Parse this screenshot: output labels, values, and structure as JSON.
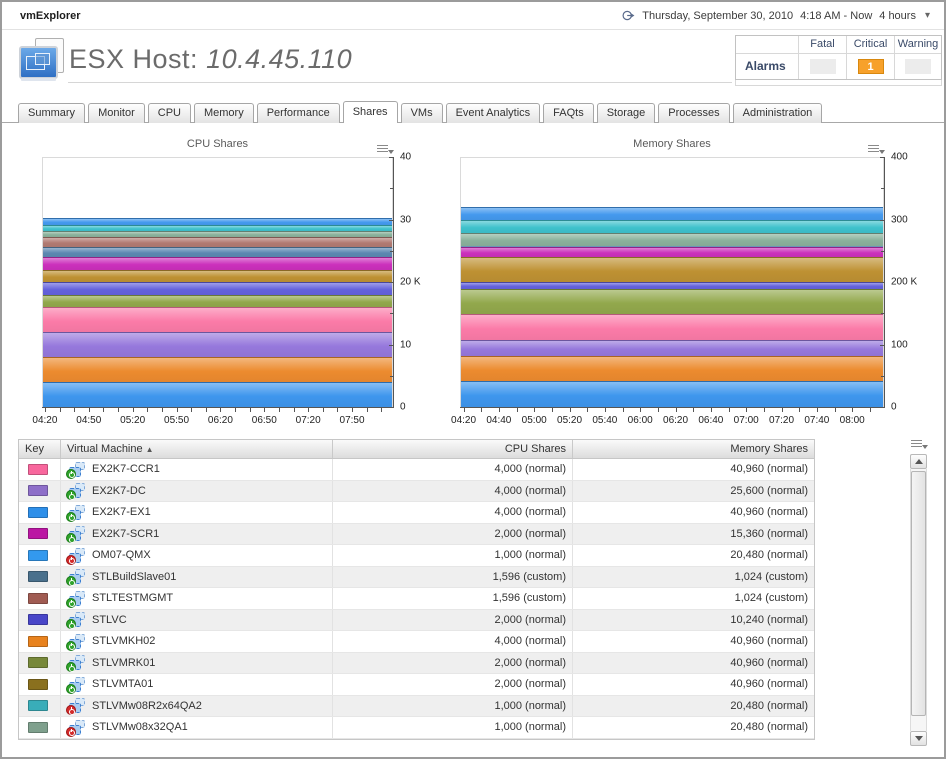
{
  "topbar": {
    "app_title": "vmExplorer",
    "date_label": "Thursday, September 30, 2010",
    "time_label": "4:18 AM - Now",
    "duration_label": "4 hours"
  },
  "header": {
    "title_prefix": "ESX Host:",
    "title_value": "10.4.45.110"
  },
  "alarms": {
    "row_label": "Alarms",
    "columns": [
      "Fatal",
      "Critical",
      "Warning"
    ],
    "fatal_count": "",
    "critical_count": "1",
    "warning_count": "",
    "critical_color": "#F7A12B"
  },
  "tabs": {
    "active": "Shares",
    "items": [
      "Summary",
      "Monitor",
      "CPU",
      "Memory",
      "Performance",
      "Shares",
      "VMs",
      "Event Analytics",
      "FAQts",
      "Storage",
      "Processes",
      "Administration"
    ]
  },
  "chart_data": [
    {
      "type": "area",
      "stacked": true,
      "title": "CPU Shares",
      "y_unit": "K",
      "ylim": [
        0,
        40000
      ],
      "y_minor_step": 5000,
      "y_ticks": [
        {
          "value": 40000,
          "label": "40"
        },
        {
          "value": 30000,
          "label": "30"
        },
        {
          "value": 20000,
          "label": "20 K"
        },
        {
          "value": 10000,
          "label": "10"
        },
        {
          "value": 0,
          "label": "0"
        }
      ],
      "x_start": "04:18",
      "x_end": "08:18",
      "x_minor_step_min": 10,
      "x_labels": [
        "04:20",
        "04:50",
        "05:20",
        "05:50",
        "06:20",
        "06:50",
        "07:20",
        "07:50"
      ],
      "note": "values constant across the 4-hour window; stacked bottom to top",
      "series_bottom_to_top": [
        {
          "name": "EX2K7-EX1",
          "value": 4000,
          "color": "#3E96ED"
        },
        {
          "name": "STLVMKH02",
          "value": 4000,
          "color": "#EC8B2F"
        },
        {
          "name": "EX2K7-DC",
          "value": 4000,
          "color": "#9678DC"
        },
        {
          "name": "EX2K7-CCR1",
          "value": 4000,
          "color": "#FB7BA8"
        },
        {
          "name": "STLVMRK01",
          "value": 2000,
          "color": "#92A84C"
        },
        {
          "name": "STLVC",
          "value": 2000,
          "color": "#6462DC"
        },
        {
          "name": "STLVMTA01",
          "value": 2000,
          "color": "#BE9133"
        },
        {
          "name": "EX2K7-SCR1",
          "value": 2000,
          "color": "#CB30BC"
        },
        {
          "name": "STLBuildSlave01",
          "value": 1596,
          "color": "#5C88B1"
        },
        {
          "name": "STLTESTMGMT",
          "value": 1596,
          "color": "#B17A72"
        },
        {
          "name": "STLVMw08x32QA1",
          "value": 1000,
          "color": "#8AB19B"
        },
        {
          "name": "STLVMw08R2x64QA2",
          "value": 1000,
          "color": "#3FC1CC"
        },
        {
          "name": "OM07-QMX",
          "value": 1000,
          "color": "#4499EE"
        }
      ]
    },
    {
      "type": "area",
      "stacked": true,
      "title": "Memory Shares",
      "y_unit": "K",
      "ylim": [
        0,
        400000
      ],
      "y_minor_step": 50000,
      "y_ticks": [
        {
          "value": 400000,
          "label": "400"
        },
        {
          "value": 300000,
          "label": "300"
        },
        {
          "value": 200000,
          "label": "200 K"
        },
        {
          "value": 100000,
          "label": "100"
        },
        {
          "value": 0,
          "label": "0"
        }
      ],
      "x_start": "04:18",
      "x_end": "08:18",
      "x_minor_step_min": 10,
      "x_labels": [
        "04:20",
        "04:40",
        "05:00",
        "05:20",
        "05:40",
        "06:00",
        "06:20",
        "06:40",
        "07:00",
        "07:20",
        "07:40",
        "08:00"
      ],
      "note": "values constant across the 4-hour window; stacked bottom to top",
      "series_bottom_to_top": [
        {
          "name": "EX2K7-EX1",
          "value": 40960,
          "color": "#3E96ED"
        },
        {
          "name": "STLVMKH02",
          "value": 40960,
          "color": "#EC8B2F"
        },
        {
          "name": "EX2K7-DC",
          "value": 25600,
          "color": "#9678DC"
        },
        {
          "name": "EX2K7-CCR1",
          "value": 40960,
          "color": "#FB7BA8"
        },
        {
          "name": "STLVMRK01",
          "value": 40960,
          "color": "#92A84C"
        },
        {
          "name": "STLVC",
          "value": 10240,
          "color": "#6462DC"
        },
        {
          "name": "STLVMTA01",
          "value": 40960,
          "color": "#BE9133"
        },
        {
          "name": "EX2K7-SCR1",
          "value": 15360,
          "color": "#CB30BC"
        },
        {
          "name": "STLBuildSlave01",
          "value": 1024,
          "color": "#5C88B1"
        },
        {
          "name": "STLTESTMGMT",
          "value": 1024,
          "color": "#B17A72"
        },
        {
          "name": "STLVMw08x32QA1",
          "value": 20480,
          "color": "#8AB19B"
        },
        {
          "name": "STLVMw08R2x64QA2",
          "value": 20480,
          "color": "#3FC1CC"
        },
        {
          "name": "OM07-QMX",
          "value": 20480,
          "color": "#4499EE"
        }
      ]
    }
  ],
  "table": {
    "columns": [
      "Key",
      "Virtual Machine",
      "CPU Shares",
      "Memory Shares"
    ],
    "sorted_by": "Virtual Machine",
    "sort_dir": "asc",
    "rows": [
      {
        "name": "EX2K7-CCR1",
        "key_color": "#F8679D",
        "power": "on",
        "cpu_shares": "4,000 (normal)",
        "memory_shares": "40,960 (normal)",
        "cpu_value": 4000,
        "memory_value": 40960
      },
      {
        "name": "EX2K7-DC",
        "key_color": "#8E6FC9",
        "power": "on",
        "cpu_shares": "4,000 (normal)",
        "memory_shares": "25,600 (normal)",
        "cpu_value": 4000,
        "memory_value": 25600
      },
      {
        "name": "EX2K7-EX1",
        "key_color": "#2E8FE9",
        "power": "on",
        "cpu_shares": "4,000 (normal)",
        "memory_shares": "40,960 (normal)",
        "cpu_value": 4000,
        "memory_value": 40960
      },
      {
        "name": "EX2K7-SCR1",
        "key_color": "#BB16A3",
        "power": "on",
        "cpu_shares": "2,000 (normal)",
        "memory_shares": "15,360 (normal)",
        "cpu_value": 2000,
        "memory_value": 15360
      },
      {
        "name": "OM07-QMX",
        "key_color": "#3399EE",
        "power": "off",
        "cpu_shares": "1,000 (normal)",
        "memory_shares": "20,480 (normal)",
        "cpu_value": 1000,
        "memory_value": 20480
      },
      {
        "name": "STLBuildSlave01",
        "key_color": "#4A708C",
        "power": "on",
        "cpu_shares": "1,596 (custom)",
        "memory_shares": "1,024 (custom)",
        "cpu_value": 1596,
        "memory_value": 1024
      },
      {
        "name": "STLTESTMGMT",
        "key_color": "#A05B52",
        "power": "on",
        "cpu_shares": "1,596 (custom)",
        "memory_shares": "1,024 (custom)",
        "cpu_value": 1596,
        "memory_value": 1024
      },
      {
        "name": "STLVC",
        "key_color": "#4946C8",
        "power": "on",
        "cpu_shares": "2,000 (normal)",
        "memory_shares": "10,240 (normal)",
        "cpu_value": 2000,
        "memory_value": 10240
      },
      {
        "name": "STLVMKH02",
        "key_color": "#E8821E",
        "power": "on",
        "cpu_shares": "4,000 (normal)",
        "memory_shares": "40,960 (normal)",
        "cpu_value": 4000,
        "memory_value": 40960
      },
      {
        "name": "STLVMRK01",
        "key_color": "#77883A",
        "power": "on",
        "cpu_shares": "2,000 (normal)",
        "memory_shares": "40,960 (normal)",
        "cpu_value": 2000,
        "memory_value": 40960
      },
      {
        "name": "STLVMTA01",
        "key_color": "#8A701E",
        "power": "on",
        "cpu_shares": "2,000 (normal)",
        "memory_shares": "40,960 (normal)",
        "cpu_value": 2000,
        "memory_value": 40960
      },
      {
        "name": "STLVMw08R2x64QA2",
        "key_color": "#39ADB9",
        "power": "off",
        "cpu_shares": "1,000 (normal)",
        "memory_shares": "20,480 (normal)",
        "cpu_value": 1000,
        "memory_value": 20480
      },
      {
        "name": "STLVMw08x32QA1",
        "key_color": "#7FA08D",
        "power": "off",
        "cpu_shares": "1,000 (normal)",
        "memory_shares": "20,480 (normal)",
        "cpu_value": 1000,
        "memory_value": 20480
      }
    ]
  },
  "icons": {
    "sort_asc": "▲",
    "dropdown_caret": "▾"
  }
}
